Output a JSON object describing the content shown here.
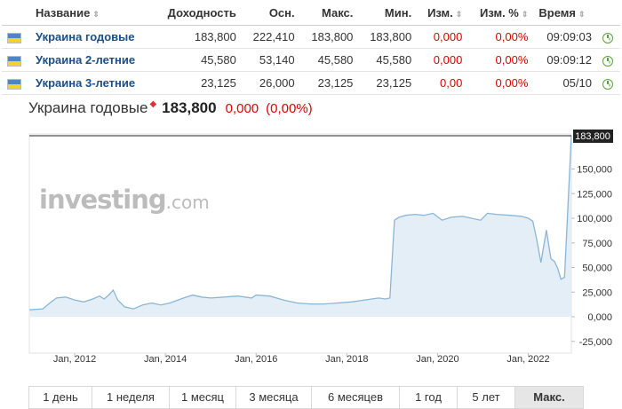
{
  "table": {
    "headers": {
      "name": "Название",
      "yield": "Доходность",
      "prev": "Осн.",
      "high": "Макс.",
      "low": "Мин.",
      "chg": "Изм.",
      "chg_pct": "Изм. %",
      "time": "Время"
    },
    "rows": [
      {
        "name": "Украина годовые",
        "yield": "183,800",
        "prev": "222,410",
        "high": "183,800",
        "low": "183,800",
        "chg": "0,000",
        "chg_pct": "0,00%",
        "time": "09:09:03"
      },
      {
        "name": "Украина 2-летние",
        "yield": "45,580",
        "prev": "53,140",
        "high": "45,580",
        "low": "45,580",
        "chg": "0,000",
        "chg_pct": "0,00%",
        "time": "09:09:12"
      },
      {
        "name": "Украина 3-летние",
        "yield": "23,125",
        "prev": "26,000",
        "high": "23,125",
        "low": "23,125",
        "chg": "0,00",
        "chg_pct": "0,00%",
        "time": "05/10"
      }
    ]
  },
  "header": {
    "title": "Украина годовые",
    "price": "183,800",
    "change": "0,000",
    "change_pct": "(0,00%)"
  },
  "watermark": {
    "main": "investing",
    "suffix": ".com"
  },
  "ranges": [
    "1 день",
    "1 неделя",
    "1 месяц",
    "3 месяца",
    "6 месяцев",
    "1 год",
    "5 лет",
    "Макс."
  ],
  "active_range": "Макс.",
  "colors": {
    "accent_red": "#e00000",
    "link_blue": "#1a4f86",
    "series": "#8ab6d6",
    "fill": "#e4eef6"
  },
  "chart_data": {
    "type": "area",
    "title": "",
    "xlabel": "",
    "ylabel": "",
    "ylim": [
      -25000,
      180000
    ],
    "yticks": [
      "183,800",
      "150,000",
      "125,000",
      "100,000",
      "75,000",
      "50,000",
      "25,000",
      "0,000",
      "-25,000"
    ],
    "ytick_values": [
      183800,
      150000,
      125000,
      100000,
      75000,
      50000,
      25000,
      0,
      -25000
    ],
    "xticks": [
      "Jan, 2012",
      "Jan, 2014",
      "Jan, 2016",
      "Jan, 2018",
      "Jan, 2020",
      "Jan, 2022"
    ],
    "xtick_values": [
      2012,
      2014,
      2016,
      2018,
      2020,
      2022
    ],
    "xlim": [
      2011.0,
      2022.95
    ],
    "current_value": 183800,
    "current_label": "183,800",
    "grid": false,
    "series": [
      {
        "x": [
          2011.0,
          2011.3,
          2011.45,
          2011.6,
          2011.8,
          2012.0,
          2012.2,
          2012.4,
          2012.55,
          2012.65,
          2012.75,
          2012.85,
          2012.95,
          2013.1,
          2013.3,
          2013.5,
          2013.7,
          2013.9,
          2014.1,
          2014.4,
          2014.6,
          2014.8,
          2015.0,
          2015.3,
          2015.6,
          2015.9,
          2016.0,
          2016.3,
          2016.6,
          2016.9,
          2017.2,
          2017.5,
          2017.8,
          2018.1,
          2018.4,
          2018.7,
          2018.85,
          2018.95,
          2019.05,
          2019.15,
          2019.3,
          2019.5,
          2019.7,
          2019.9,
          2020.1,
          2020.3,
          2020.55,
          2020.75,
          2020.95,
          2021.1,
          2021.3,
          2021.6,
          2021.85,
          2022.0,
          2022.1,
          2022.18,
          2022.28,
          2022.4,
          2022.5,
          2022.58,
          2022.65,
          2022.72,
          2022.8,
          2022.95
        ],
        "y": [
          7000,
          8000,
          14000,
          19000,
          20000,
          17000,
          15000,
          18000,
          21000,
          18000,
          22000,
          27000,
          17000,
          10000,
          8000,
          12000,
          14000,
          12000,
          14000,
          19000,
          22000,
          20000,
          19000,
          20000,
          21000,
          19000,
          22000,
          21000,
          17000,
          14000,
          13000,
          13000,
          14000,
          15000,
          17000,
          19000,
          18000,
          19000,
          98000,
          101000,
          103000,
          104000,
          103000,
          105000,
          98000,
          101000,
          102000,
          100000,
          98000,
          105000,
          104000,
          103000,
          102000,
          100000,
          97000,
          80000,
          55000,
          88000,
          59000,
          56000,
          49000,
          38000,
          40000,
          183800
        ]
      }
    ]
  }
}
